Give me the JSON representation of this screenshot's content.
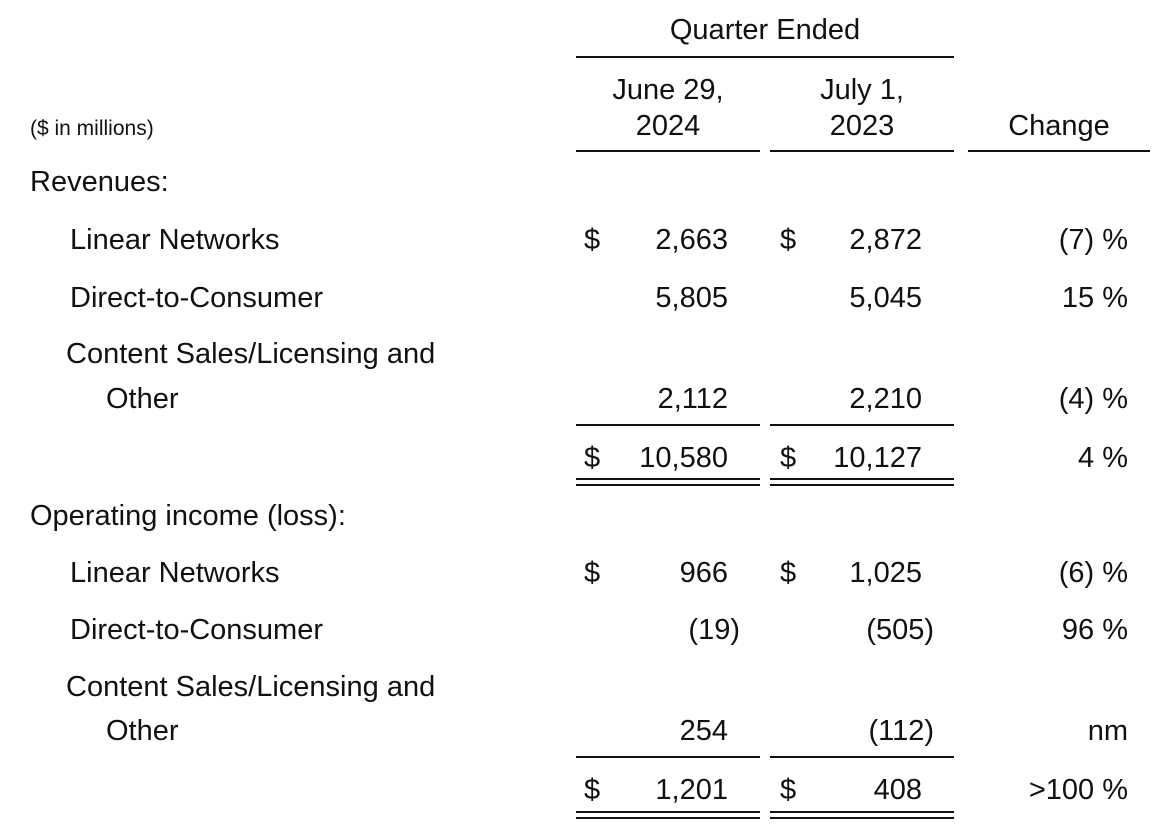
{
  "header": {
    "group_label": "Quarter Ended",
    "col1": "June 29,\n2024",
    "col1_line1": "June 29,",
    "col1_line2": "2024",
    "col2_line1": "July 1,",
    "col2_line2": "2023",
    "change_label": "Change",
    "units_label": "($ in millions)"
  },
  "revenues": {
    "section_label": "Revenues:",
    "rows": [
      {
        "label": "Linear Networks",
        "dollar1": "$",
        "v1": "2,663",
        "dollar2": "$",
        "v2": "2,872",
        "change": "(7) %"
      },
      {
        "label": "Direct-to-Consumer",
        "v1": "5,805",
        "v2": "5,045",
        "change": "15 %"
      },
      {
        "label_line1": "Content Sales/Licensing and",
        "label_line2": "Other",
        "v1": "2,112",
        "v2": "2,210",
        "change": "(4) %"
      }
    ],
    "total": {
      "dollar1": "$",
      "v1": "10,580",
      "dollar2": "$",
      "v2": "10,127",
      "change": "4 %"
    }
  },
  "operating": {
    "section_label": "Operating income (loss):",
    "rows": [
      {
        "label": "Linear Networks",
        "dollar1": "$",
        "v1": "966",
        "dollar2": "$",
        "v2": "1,025",
        "change": "(6) %"
      },
      {
        "label": "Direct-to-Consumer",
        "v1": "(19)",
        "v2": "(505)",
        "change": "96 %"
      },
      {
        "label_line1": "Content Sales/Licensing and",
        "label_line2": "Other",
        "v1": "254",
        "v2": "(112)",
        "change": "nm"
      }
    ],
    "total": {
      "dollar1": "$",
      "v1": "1,201",
      "dollar2": "$",
      "v2": "408",
      "change": ">100 %"
    }
  }
}
